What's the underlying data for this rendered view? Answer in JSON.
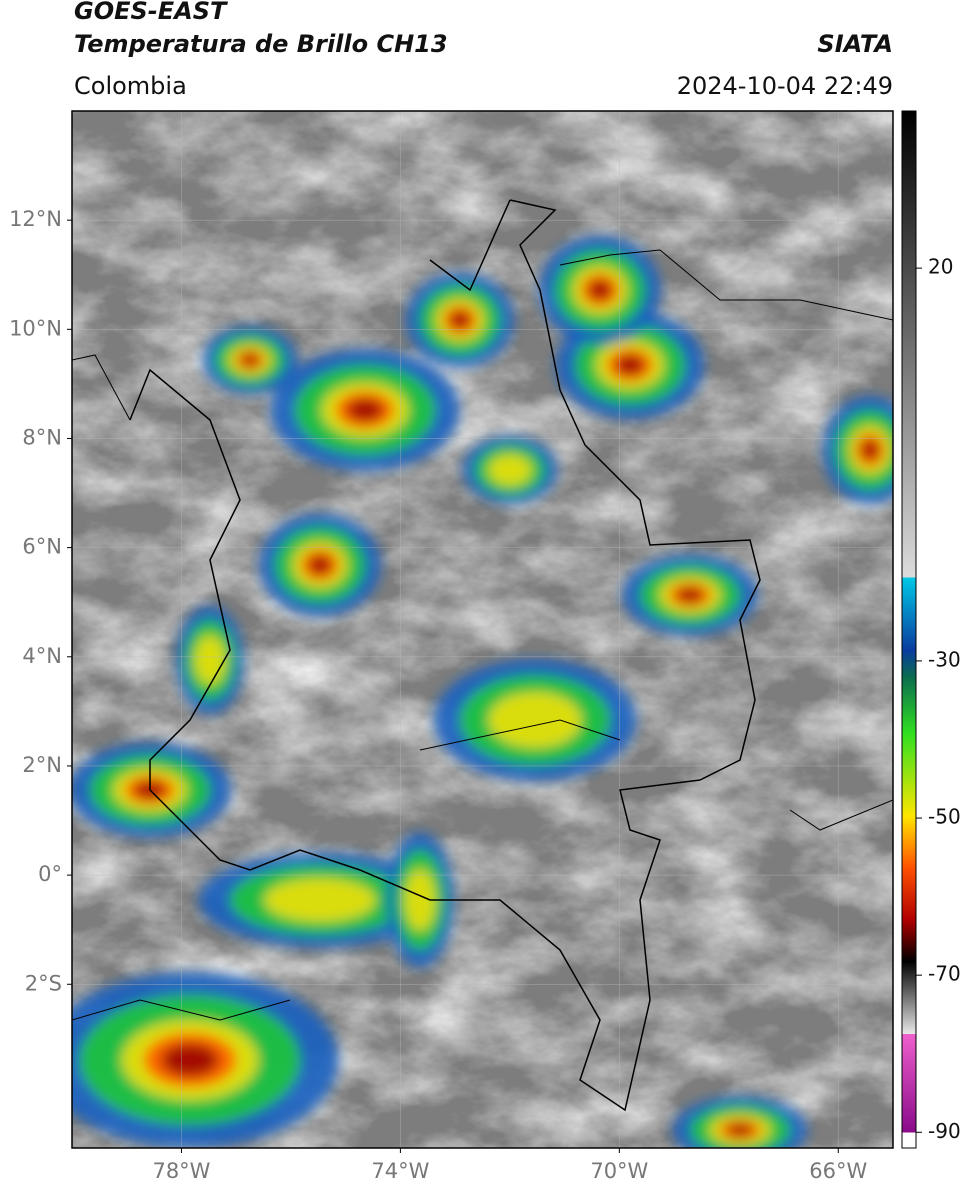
{
  "header": {
    "satellite": "GOES-EAST",
    "product": "Temperatura de Brillo CH13",
    "region": "Colombia",
    "source": "SIATA",
    "datetime": "2024-10-04 22:49"
  },
  "map": {
    "lon_range": [
      -80,
      -65
    ],
    "lat_range": [
      -5,
      14
    ],
    "lat_ticks": [
      {
        "value": 12,
        "label": "12°N"
      },
      {
        "value": 10,
        "label": "10°N"
      },
      {
        "value": 8,
        "label": "8°N"
      },
      {
        "value": 6,
        "label": "6°N"
      },
      {
        "value": 4,
        "label": "4°N"
      },
      {
        "value": 2,
        "label": "2°N"
      },
      {
        "value": 0,
        "label": "0°"
      },
      {
        "value": -2,
        "label": "2°S"
      }
    ],
    "lon_ticks": [
      {
        "value": -78,
        "label": "78°W"
      },
      {
        "value": -74,
        "label": "74°W"
      },
      {
        "value": -70,
        "label": "70°W"
      },
      {
        "value": -66,
        "label": "66°W"
      }
    ]
  },
  "colorbar": {
    "range": [
      -92,
      40
    ],
    "ticks": [
      20,
      -30,
      -50,
      -70,
      -90
    ]
  }
}
